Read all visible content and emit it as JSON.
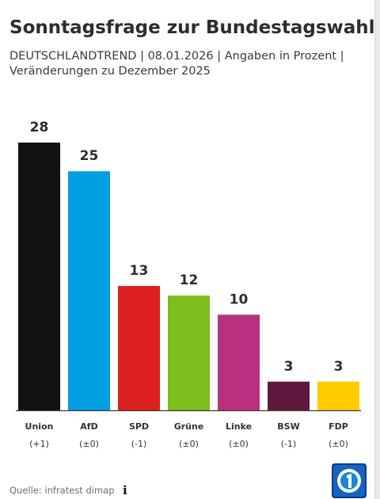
{
  "header": {
    "title": "Sonntagsfrage zur Bundestagswahl",
    "subtitle_line1": "DEUTSCHLANDTREND | 08.01.2026 | Angaben in Prozent |",
    "subtitle_line2": "Veränderungen zu Dezember 2025"
  },
  "footer": {
    "source": "Quelle: infratest dimap",
    "info_icon": "info-icon",
    "logo": "tagesschau-logo"
  },
  "chart_data": {
    "type": "bar",
    "title": "Sonntagsfrage zur Bundestagswahl",
    "categories": [
      "Union",
      "AfD",
      "SPD",
      "Grüne",
      "Linke",
      "BSW",
      "FDP"
    ],
    "values": [
      28,
      25,
      13,
      12,
      10,
      3,
      3
    ],
    "changes": [
      "(+1)",
      "(±0)",
      "(-1)",
      "(±0)",
      "(±0)",
      "(-1)",
      "(±0)"
    ],
    "colors": [
      "#111111",
      "#009ee0",
      "#dc1f1f",
      "#7cbe1e",
      "#b8317e",
      "#5e1a3c",
      "#ffcc00"
    ],
    "ylim": [
      0,
      28
    ],
    "grid": false,
    "legend": "none"
  }
}
